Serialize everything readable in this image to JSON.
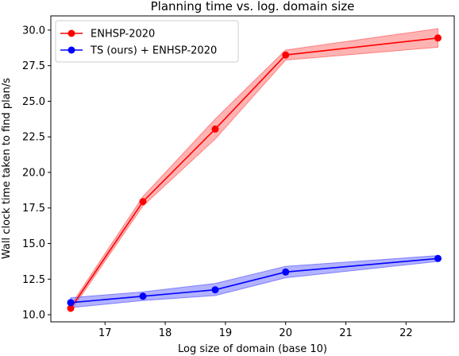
{
  "chart_data": {
    "type": "line",
    "title": "Planning time vs. log. domain size",
    "xlabel": "Log size of domain (base 10)",
    "ylabel": "Wall clock time taken to find plan/s",
    "xlim": [
      16.1,
      22.8
    ],
    "ylim": [
      9.5,
      31.0
    ],
    "xticks": [
      17,
      18,
      19,
      20,
      21,
      22
    ],
    "xtick_labels": [
      "17",
      "18",
      "19",
      "20",
      "21",
      "22"
    ],
    "yticks": [
      10.0,
      12.5,
      15.0,
      17.5,
      20.0,
      22.5,
      25.0,
      27.5,
      30.0
    ],
    "ytick_labels": [
      "10.0",
      "12.5",
      "15.0",
      "17.5",
      "20.0",
      "22.5",
      "25.0",
      "27.5",
      "30.0"
    ],
    "grid": false,
    "legend_position": "top-left",
    "series": [
      {
        "name": "ENHSP-2020",
        "color": "#ff0000",
        "band_color": "#ff8080",
        "x": [
          16.43,
          17.63,
          18.83,
          20.0,
          22.53
        ],
        "y": [
          10.45,
          17.95,
          23.05,
          28.25,
          29.45
        ],
        "lower": [
          10.25,
          17.65,
          22.35,
          27.9,
          28.8
        ],
        "upper": [
          10.65,
          18.3,
          23.75,
          28.6,
          30.1
        ]
      },
      {
        "name": "TS (ours) + ENHSP-2020",
        "color": "#0000ff",
        "band_color": "#7f7fff",
        "x": [
          16.43,
          17.63,
          18.83,
          20.0,
          22.53
        ],
        "y": [
          10.85,
          11.3,
          11.75,
          13.0,
          13.95
        ],
        "lower": [
          10.5,
          11.0,
          11.35,
          12.6,
          13.75
        ],
        "upper": [
          11.2,
          11.6,
          12.2,
          13.4,
          14.15
        ]
      }
    ]
  }
}
